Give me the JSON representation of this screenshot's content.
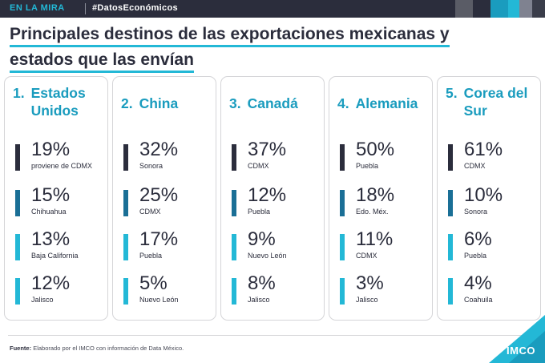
{
  "header": {
    "section": "EN LA MIRA",
    "tag": "#DatosEconómicos",
    "swatches": [
      "#5a5c66",
      "#2b2d3c",
      "#1a9cbe",
      "#23b8d6",
      "#7f8290",
      "#3a3d4a"
    ]
  },
  "title": {
    "line1": "Principales destinos de las exportaciones mexicanas y",
    "line2": "estados que las envían"
  },
  "colors": {
    "bar1": "#2b2d3c",
    "bar2": "#1a6f96",
    "bar3": "#23b8d6",
    "bar4": "#23b8d6",
    "accent": "#23b8d6"
  },
  "destinations": [
    {
      "rank": "1.",
      "name": "Estados Unidos",
      "entries": [
        {
          "pct": "19%",
          "state": "proviene de CDMX"
        },
        {
          "pct": "15%",
          "state": "Chihuahua"
        },
        {
          "pct": "13%",
          "state": "Baja California"
        },
        {
          "pct": "12%",
          "state": "Jalisco"
        }
      ]
    },
    {
      "rank": "2.",
      "name": "China",
      "entries": [
        {
          "pct": "32%",
          "state": "Sonora"
        },
        {
          "pct": "25%",
          "state": "CDMX"
        },
        {
          "pct": "17%",
          "state": "Puebla"
        },
        {
          "pct": "5%",
          "state": "Nuevo León"
        }
      ]
    },
    {
      "rank": "3.",
      "name": "Canadá",
      "entries": [
        {
          "pct": "37%",
          "state": "CDMX"
        },
        {
          "pct": "12%",
          "state": "Puebla"
        },
        {
          "pct": "9%",
          "state": "Nuevo León"
        },
        {
          "pct": "8%",
          "state": "Jalisco"
        }
      ]
    },
    {
      "rank": "4.",
      "name": "Alemania",
      "entries": [
        {
          "pct": "50%",
          "state": "Puebla"
        },
        {
          "pct": "18%",
          "state": "Edo. Méx."
        },
        {
          "pct": "11%",
          "state": "CDMX"
        },
        {
          "pct": "3%",
          "state": "Jalisco"
        }
      ]
    },
    {
      "rank": "5.",
      "name": "Corea del Sur",
      "entries": [
        {
          "pct": "61%",
          "state": "CDMX"
        },
        {
          "pct": "10%",
          "state": "Sonora"
        },
        {
          "pct": "6%",
          "state": "Puebla"
        },
        {
          "pct": "4%",
          "state": "Coahuila"
        }
      ]
    }
  ],
  "footer": {
    "label": "Fuente:",
    "text": "Elaborado por el IMCO con información de Data México."
  },
  "logo": "IMCO"
}
